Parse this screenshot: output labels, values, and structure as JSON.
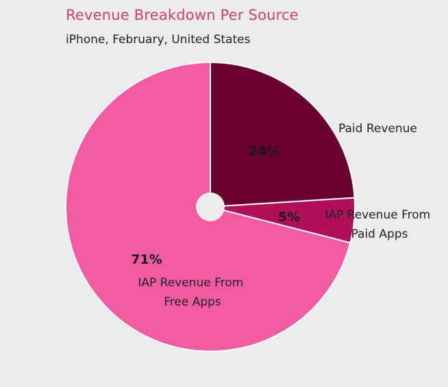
{
  "chart_data": {
    "type": "pie",
    "title": "Revenue Breakdown Per Source",
    "subtitle": "iPhone, February, United States",
    "start_angle_deg": 0,
    "direction": "clockwise",
    "center_hole": true,
    "slices": [
      {
        "label": "Paid Revenue",
        "value": 24,
        "value_label": "24%",
        "color": "#6a0030"
      },
      {
        "label": "IAP Revenue From Paid Apps",
        "value": 5,
        "value_label": "5%",
        "color": "#b0105a"
      },
      {
        "label": "IAP Revenue From Free Apps",
        "value": 71,
        "value_label": "71%",
        "color": "#f25aa2"
      }
    ]
  },
  "colors": {
    "title": "#d63b74",
    "background": "#ececec",
    "slice_border": "#ffffff"
  }
}
